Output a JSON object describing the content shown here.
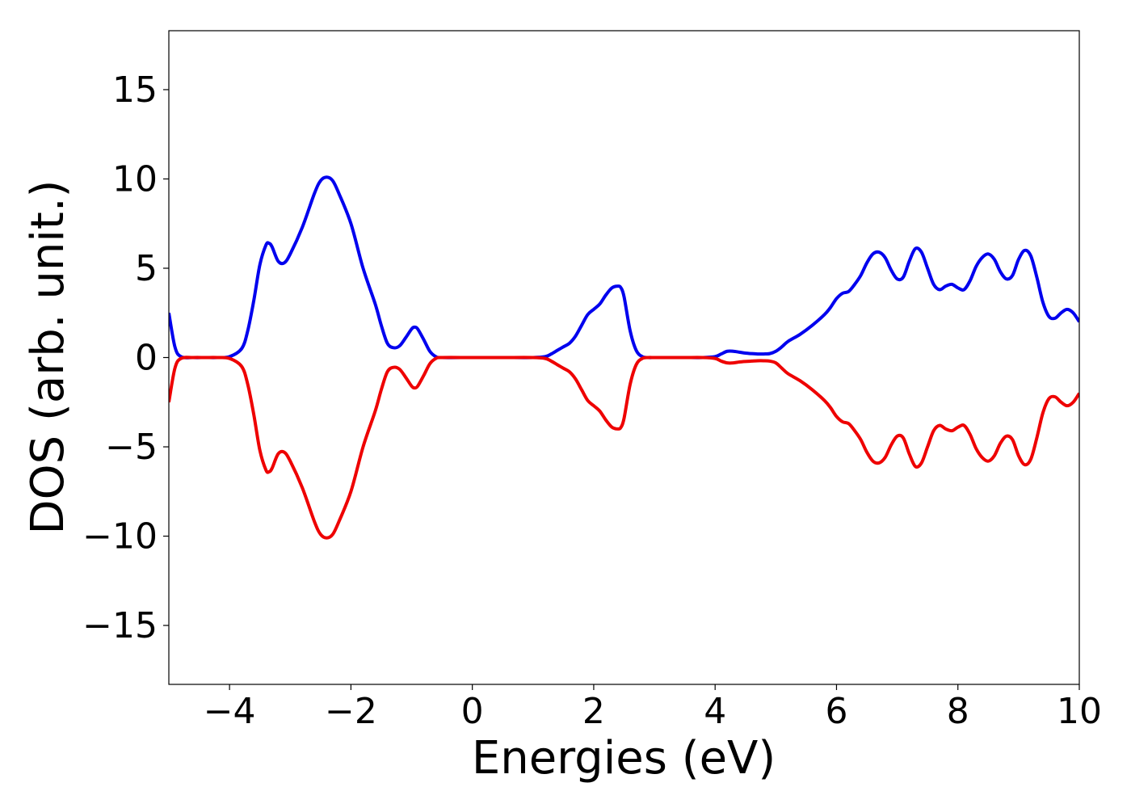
{
  "chart_data": {
    "type": "line",
    "title": "",
    "xlabel": "Energies (eV)",
    "ylabel": "DOS (arb. unit.)",
    "xlim": [
      -5,
      10
    ],
    "ylim": [
      -18.3,
      18.3
    ],
    "xticks": [
      -4,
      -2,
      0,
      2,
      4,
      6,
      8,
      10
    ],
    "xtick_labels": [
      "−4",
      "−2",
      "0",
      "2",
      "4",
      "6",
      "8",
      "10"
    ],
    "yticks": [
      -15,
      -10,
      -5,
      0,
      5,
      10,
      15
    ],
    "ytick_labels": [
      "−15",
      "−10",
      "−5",
      "0",
      "5",
      "10",
      "15"
    ],
    "grid": false,
    "legend": "none",
    "series": [
      {
        "color": "#0000ee",
        "x": [
          -5.0,
          -4.9,
          -4.8,
          -4.6,
          -4.4,
          -4.2,
          -4.0,
          -3.8,
          -3.7,
          -3.6,
          -3.5,
          -3.4,
          -3.35,
          -3.3,
          -3.2,
          -3.1,
          -3.0,
          -2.8,
          -2.6,
          -2.5,
          -2.4,
          -2.3,
          -2.2,
          -2.0,
          -1.8,
          -1.6,
          -1.5,
          -1.4,
          -1.3,
          -1.2,
          -1.1,
          -1.0,
          -0.95,
          -0.9,
          -0.8,
          -0.7,
          -0.6,
          -0.5,
          0.0,
          0.5,
          1.0,
          1.2,
          1.3,
          1.4,
          1.5,
          1.6,
          1.7,
          1.8,
          1.9,
          2.0,
          2.1,
          2.2,
          2.3,
          2.4,
          2.45,
          2.5,
          2.6,
          2.7,
          2.8,
          2.9,
          3.0,
          3.2,
          3.5,
          3.8,
          4.0,
          4.1,
          4.2,
          4.3,
          4.4,
          4.5,
          4.6,
          4.7,
          4.8,
          4.9,
          5.0,
          5.1,
          5.2,
          5.4,
          5.6,
          5.8,
          5.9,
          6.0,
          6.1,
          6.2,
          6.3,
          6.4,
          6.5,
          6.6,
          6.7,
          6.8,
          6.9,
          7.0,
          7.1,
          7.2,
          7.3,
          7.4,
          7.5,
          7.6,
          7.7,
          7.8,
          7.9,
          8.0,
          8.1,
          8.2,
          8.3,
          8.4,
          8.5,
          8.6,
          8.7,
          8.8,
          8.9,
          9.0,
          9.1,
          9.2,
          9.3,
          9.4,
          9.5,
          9.6,
          9.7,
          9.8,
          9.9,
          10.0
        ],
        "y": [
          2.5,
          0.6,
          0.05,
          0.0,
          0.0,
          0.0,
          0.05,
          0.5,
          1.5,
          3.2,
          5.2,
          6.3,
          6.4,
          6.2,
          5.4,
          5.3,
          5.8,
          7.3,
          9.2,
          9.9,
          10.1,
          9.9,
          9.2,
          7.5,
          5.0,
          3.0,
          1.8,
          0.8,
          0.55,
          0.65,
          1.1,
          1.6,
          1.7,
          1.6,
          1.0,
          0.35,
          0.05,
          0.0,
          0.0,
          0.0,
          0.0,
          0.05,
          0.2,
          0.4,
          0.6,
          0.8,
          1.2,
          1.8,
          2.4,
          2.7,
          3.0,
          3.5,
          3.9,
          4.0,
          3.9,
          3.4,
          1.5,
          0.4,
          0.05,
          0.0,
          0.0,
          0.0,
          0.0,
          0.0,
          0.05,
          0.2,
          0.35,
          0.35,
          0.3,
          0.25,
          0.22,
          0.2,
          0.2,
          0.22,
          0.35,
          0.6,
          0.9,
          1.3,
          1.8,
          2.4,
          2.8,
          3.3,
          3.6,
          3.7,
          4.1,
          4.6,
          5.3,
          5.8,
          5.9,
          5.6,
          4.9,
          4.4,
          4.5,
          5.4,
          6.1,
          5.9,
          5.0,
          4.1,
          3.8,
          4.0,
          4.1,
          3.9,
          3.8,
          4.3,
          5.1,
          5.6,
          5.8,
          5.5,
          4.8,
          4.4,
          4.6,
          5.5,
          6.0,
          5.7,
          4.5,
          3.1,
          2.3,
          2.2,
          2.5,
          2.7,
          2.5,
          2.0
        ]
      },
      {
        "color": "#ee0000",
        "x": [
          -5.0,
          -4.9,
          -4.8,
          -4.6,
          -4.4,
          -4.2,
          -4.0,
          -3.8,
          -3.7,
          -3.6,
          -3.5,
          -3.4,
          -3.35,
          -3.3,
          -3.2,
          -3.1,
          -3.0,
          -2.8,
          -2.6,
          -2.5,
          -2.4,
          -2.3,
          -2.2,
          -2.0,
          -1.8,
          -1.6,
          -1.5,
          -1.4,
          -1.3,
          -1.2,
          -1.1,
          -1.0,
          -0.95,
          -0.9,
          -0.8,
          -0.7,
          -0.6,
          -0.5,
          0.0,
          0.5,
          1.0,
          1.2,
          1.3,
          1.4,
          1.5,
          1.6,
          1.7,
          1.8,
          1.9,
          2.0,
          2.1,
          2.2,
          2.3,
          2.4,
          2.45,
          2.5,
          2.6,
          2.7,
          2.8,
          2.9,
          3.0,
          3.2,
          3.5,
          3.8,
          4.0,
          4.1,
          4.2,
          4.3,
          4.4,
          4.5,
          4.6,
          4.7,
          4.8,
          4.9,
          5.0,
          5.1,
          5.2,
          5.4,
          5.6,
          5.8,
          5.9,
          6.0,
          6.1,
          6.2,
          6.3,
          6.4,
          6.5,
          6.6,
          6.7,
          6.8,
          6.9,
          7.0,
          7.1,
          7.2,
          7.3,
          7.4,
          7.5,
          7.6,
          7.7,
          7.8,
          7.9,
          8.0,
          8.1,
          8.2,
          8.3,
          8.4,
          8.5,
          8.6,
          8.7,
          8.8,
          8.9,
          9.0,
          9.1,
          9.2,
          9.3,
          9.4,
          9.5,
          9.6,
          9.7,
          9.8,
          9.9,
          10.0
        ],
        "y": [
          -2.5,
          -0.6,
          -0.05,
          0.0,
          0.0,
          0.0,
          -0.05,
          -0.5,
          -1.5,
          -3.2,
          -5.2,
          -6.3,
          -6.4,
          -6.2,
          -5.4,
          -5.3,
          -5.8,
          -7.3,
          -9.2,
          -9.9,
          -10.1,
          -9.9,
          -9.2,
          -7.5,
          -5.0,
          -3.0,
          -1.8,
          -0.8,
          -0.55,
          -0.65,
          -1.1,
          -1.6,
          -1.7,
          -1.6,
          -1.0,
          -0.35,
          -0.05,
          0.0,
          0.0,
          0.0,
          0.0,
          -0.05,
          -0.2,
          -0.4,
          -0.6,
          -0.8,
          -1.2,
          -1.8,
          -2.4,
          -2.7,
          -3.0,
          -3.5,
          -3.9,
          -4.0,
          -3.9,
          -3.4,
          -1.5,
          -0.4,
          -0.05,
          0.0,
          0.0,
          0.0,
          0.0,
          0.0,
          -0.05,
          -0.2,
          -0.3,
          -0.3,
          -0.25,
          -0.22,
          -0.2,
          -0.18,
          -0.18,
          -0.2,
          -0.3,
          -0.6,
          -0.9,
          -1.3,
          -1.8,
          -2.4,
          -2.8,
          -3.3,
          -3.6,
          -3.7,
          -4.1,
          -4.6,
          -5.3,
          -5.8,
          -5.9,
          -5.6,
          -4.9,
          -4.4,
          -4.5,
          -5.4,
          -6.1,
          -5.9,
          -5.0,
          -4.1,
          -3.8,
          -4.0,
          -4.1,
          -3.9,
          -3.8,
          -4.3,
          -5.1,
          -5.6,
          -5.8,
          -5.5,
          -4.8,
          -4.4,
          -4.6,
          -5.5,
          -6.0,
          -5.7,
          -4.5,
          -3.1,
          -2.3,
          -2.2,
          -2.5,
          -2.7,
          -2.5,
          -2.0
        ]
      }
    ]
  }
}
